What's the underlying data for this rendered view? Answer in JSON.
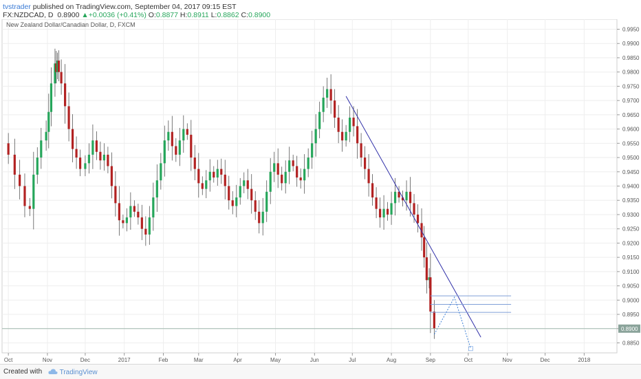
{
  "header": {
    "author": "tvstrader",
    "published": "published on TradingView.com, September 04, 2017 09:15 EST",
    "symbol": "FX:NZDCAD, D",
    "last": "0.8900",
    "change_arrow": "▲",
    "change": "+0.0036 (+0.41%)",
    "o_label": "O:",
    "o_value": "0.8877",
    "h_label": "H:",
    "h_value": "0.8911",
    "l_label": "L:",
    "l_value": "0.8862",
    "c_label": "C:",
    "c_value": "0.8900"
  },
  "footer": {
    "created_with": "Created with",
    "brand": "TradingView",
    "brand_icon": "tradingview-cloud-icon"
  },
  "colors": {
    "up": "#26a65b",
    "down": "#b22222",
    "trendline": "#2f2fa8",
    "level_line": "#7f9fd8",
    "projection": "#3d7fd6",
    "price_tag": "#8aa39a"
  },
  "chart_data": {
    "type": "candlestick",
    "title": "New Zealand Dollar/Canadian Dollar, D, FXCM",
    "x_tick_labels": [
      "Oct",
      "Nov",
      "Dec",
      "2017",
      "Feb",
      "Mar",
      "Apr",
      "May",
      "Jun",
      "Jul",
      "Aug",
      "Sep",
      "Oct",
      "Nov",
      "Dec",
      "2018"
    ],
    "x_tick_dates": [
      "2016-10-01",
      "2016-11-01",
      "2016-12-01",
      "2017-01-01",
      "2017-02-01",
      "2017-03-01",
      "2017-04-01",
      "2017-05-01",
      "2017-06-01",
      "2017-07-01",
      "2017-08-01",
      "2017-09-01",
      "2017-10-01",
      "2017-11-01",
      "2017-12-01",
      "2018-01-01"
    ],
    "x_range": [
      "2016-09-26",
      "2018-01-27"
    ],
    "y_range": [
      0.8815,
      0.9985
    ],
    "y_ticks": [
      "0.9950",
      "0.9900",
      "0.9850",
      "0.9800",
      "0.9750",
      "0.9700",
      "0.9650",
      "0.9600",
      "0.9550",
      "0.9500",
      "0.9450",
      "0.9400",
      "0.9350",
      "0.9300",
      "0.9250",
      "0.9200",
      "0.9150",
      "0.9100",
      "0.9050",
      "0.9000",
      "0.8950",
      "0.8900",
      "0.8850"
    ],
    "last_price_label": "0.8900",
    "last_price": 0.89,
    "series": [
      {
        "date": "2016-09-26",
        "close": 0.955
      },
      {
        "date": "2016-10-01",
        "close": 0.951
      },
      {
        "date": "2016-10-06",
        "close": 0.944
      },
      {
        "date": "2016-10-10",
        "close": 0.94
      },
      {
        "date": "2016-10-14",
        "close": 0.933
      },
      {
        "date": "2016-10-18",
        "close": 0.932
      },
      {
        "date": "2016-10-21",
        "close": 0.944
      },
      {
        "date": "2016-10-24",
        "close": 0.95
      },
      {
        "date": "2016-10-27",
        "close": 0.956
      },
      {
        "date": "2016-10-31",
        "close": 0.959
      },
      {
        "date": "2016-11-02",
        "close": 0.966
      },
      {
        "date": "2016-11-04",
        "close": 0.976
      },
      {
        "date": "2016-11-07",
        "close": 0.983
      },
      {
        "date": "2016-11-08",
        "close": 0.98
      },
      {
        "date": "2016-11-09",
        "close": 0.984
      },
      {
        "date": "2016-11-10",
        "close": 0.98
      },
      {
        "date": "2016-11-12",
        "close": 0.976
      },
      {
        "date": "2016-11-15",
        "close": 0.968
      },
      {
        "date": "2016-11-18",
        "close": 0.96
      },
      {
        "date": "2016-11-21",
        "close": 0.953
      },
      {
        "date": "2016-11-24",
        "close": 0.95
      },
      {
        "date": "2016-11-27",
        "close": 0.946
      },
      {
        "date": "2016-12-01",
        "close": 0.948
      },
      {
        "date": "2016-12-04",
        "close": 0.951
      },
      {
        "date": "2016-12-07",
        "close": 0.956
      },
      {
        "date": "2016-12-10",
        "close": 0.952
      },
      {
        "date": "2016-12-13",
        "close": 0.949
      },
      {
        "date": "2016-12-16",
        "close": 0.951
      },
      {
        "date": "2016-12-19",
        "close": 0.947
      },
      {
        "date": "2016-12-22",
        "close": 0.94
      },
      {
        "date": "2016-12-25",
        "close": 0.934
      },
      {
        "date": "2016-12-28",
        "close": 0.928
      },
      {
        "date": "2016-12-31",
        "close": 0.927
      },
      {
        "date": "2017-01-03",
        "close": 0.929
      },
      {
        "date": "2017-01-06",
        "close": 0.933
      },
      {
        "date": "2017-01-09",
        "close": 0.931
      },
      {
        "date": "2017-01-12",
        "close": 0.929
      },
      {
        "date": "2017-01-15",
        "close": 0.925
      },
      {
        "date": "2017-01-18",
        "close": 0.923
      },
      {
        "date": "2017-01-21",
        "close": 0.929
      },
      {
        "date": "2017-01-24",
        "close": 0.936
      },
      {
        "date": "2017-01-27",
        "close": 0.942
      },
      {
        "date": "2017-01-30",
        "close": 0.948
      },
      {
        "date": "2017-02-02",
        "close": 0.956
      },
      {
        "date": "2017-02-05",
        "close": 0.959
      },
      {
        "date": "2017-02-08",
        "close": 0.954
      },
      {
        "date": "2017-02-11",
        "close": 0.951
      },
      {
        "date": "2017-02-14",
        "close": 0.956
      },
      {
        "date": "2017-02-17",
        "close": 0.96
      },
      {
        "date": "2017-02-20",
        "close": 0.958
      },
      {
        "date": "2017-02-23",
        "close": 0.95
      },
      {
        "date": "2017-02-26",
        "close": 0.946
      },
      {
        "date": "2017-03-01",
        "close": 0.941
      },
      {
        "date": "2017-03-04",
        "close": 0.939
      },
      {
        "date": "2017-03-07",
        "close": 0.942
      },
      {
        "date": "2017-03-10",
        "close": 0.945
      },
      {
        "date": "2017-03-13",
        "close": 0.943
      },
      {
        "date": "2017-03-16",
        "close": 0.946
      },
      {
        "date": "2017-03-19",
        "close": 0.944
      },
      {
        "date": "2017-03-22",
        "close": 0.94
      },
      {
        "date": "2017-03-25",
        "close": 0.935
      },
      {
        "date": "2017-03-28",
        "close": 0.933
      },
      {
        "date": "2017-03-31",
        "close": 0.936
      },
      {
        "date": "2017-04-03",
        "close": 0.94
      },
      {
        "date": "2017-04-06",
        "close": 0.942
      },
      {
        "date": "2017-04-09",
        "close": 0.939
      },
      {
        "date": "2017-04-12",
        "close": 0.935
      },
      {
        "date": "2017-04-15",
        "close": 0.931
      },
      {
        "date": "2017-04-18",
        "close": 0.927
      },
      {
        "date": "2017-04-21",
        "close": 0.931
      },
      {
        "date": "2017-04-24",
        "close": 0.938
      },
      {
        "date": "2017-04-27",
        "close": 0.945
      },
      {
        "date": "2017-04-30",
        "close": 0.948
      },
      {
        "date": "2017-05-03",
        "close": 0.944
      },
      {
        "date": "2017-05-06",
        "close": 0.941
      },
      {
        "date": "2017-05-09",
        "close": 0.945
      },
      {
        "date": "2017-05-12",
        "close": 0.949
      },
      {
        "date": "2017-05-15",
        "close": 0.947
      },
      {
        "date": "2017-05-18",
        "close": 0.943
      },
      {
        "date": "2017-05-21",
        "close": 0.942
      },
      {
        "date": "2017-05-24",
        "close": 0.946
      },
      {
        "date": "2017-05-27",
        "close": 0.95
      },
      {
        "date": "2017-05-30",
        "close": 0.955
      },
      {
        "date": "2017-06-02",
        "close": 0.96
      },
      {
        "date": "2017-06-05",
        "close": 0.966
      },
      {
        "date": "2017-06-08",
        "close": 0.971
      },
      {
        "date": "2017-06-11",
        "close": 0.974
      },
      {
        "date": "2017-06-14",
        "close": 0.97
      },
      {
        "date": "2017-06-17",
        "close": 0.964
      },
      {
        "date": "2017-06-20",
        "close": 0.959
      },
      {
        "date": "2017-06-23",
        "close": 0.956
      },
      {
        "date": "2017-06-26",
        "close": 0.959
      },
      {
        "date": "2017-06-29",
        "close": 0.964
      },
      {
        "date": "2017-07-02",
        "close": 0.961
      },
      {
        "date": "2017-07-05",
        "close": 0.955
      },
      {
        "date": "2017-07-08",
        "close": 0.95
      },
      {
        "date": "2017-07-11",
        "close": 0.946
      },
      {
        "date": "2017-07-14",
        "close": 0.941
      },
      {
        "date": "2017-07-17",
        "close": 0.936
      },
      {
        "date": "2017-07-20",
        "close": 0.932
      },
      {
        "date": "2017-07-23",
        "close": 0.929
      },
      {
        "date": "2017-07-26",
        "close": 0.932
      },
      {
        "date": "2017-07-29",
        "close": 0.93
      },
      {
        "date": "2017-08-01",
        "close": 0.934
      },
      {
        "date": "2017-08-04",
        "close": 0.938
      },
      {
        "date": "2017-08-07",
        "close": 0.936
      },
      {
        "date": "2017-08-10",
        "close": 0.935
      },
      {
        "date": "2017-08-13",
        "close": 0.938
      },
      {
        "date": "2017-08-16",
        "close": 0.934
      },
      {
        "date": "2017-08-19",
        "close": 0.93
      },
      {
        "date": "2017-08-22",
        "close": 0.927
      },
      {
        "date": "2017-08-25",
        "close": 0.922
      },
      {
        "date": "2017-08-27",
        "close": 0.915
      },
      {
        "date": "2017-08-29",
        "close": 0.907
      },
      {
        "date": "2017-08-31",
        "close": 0.908
      },
      {
        "date": "2017-09-01",
        "close": 0.896
      },
      {
        "date": "2017-09-04",
        "close": 0.89
      }
    ],
    "trendline": {
      "from": {
        "date": "2017-06-26",
        "price": 0.9715
      },
      "to": {
        "date": "2017-10-11",
        "price": 0.887
      }
    },
    "levels": [
      0.9015,
      0.8985,
      0.8957
    ],
    "levels_range": [
      "2017-09-01",
      "2017-11-04"
    ],
    "projection": [
      {
        "date": "2017-09-04",
        "price": 0.888
      },
      {
        "date": "2017-09-20",
        "price": 0.901
      },
      {
        "date": "2017-10-03",
        "price": 0.883
      }
    ]
  }
}
